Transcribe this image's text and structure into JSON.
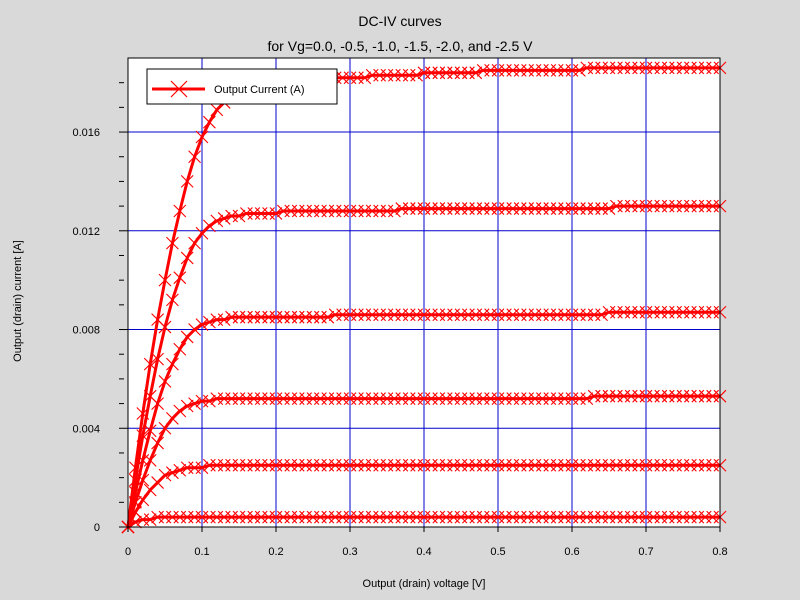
{
  "chart_data": {
    "type": "line",
    "title": "DC-IV curves",
    "subtitle": "for Vg=0.0, -0.5, -1.0, -1.5, -2.0, and -2.5 V",
    "xlabel": "Output (drain) voltage [V]",
    "ylabel": "Output (drain) current [A]",
    "xlim": [
      0,
      0.8
    ],
    "ylim": [
      0,
      0.019
    ],
    "x_ticks": [
      "0",
      "0.1",
      "0.2",
      "0.3",
      "0.4",
      "0.5",
      "0.6",
      "0.7",
      "0.8"
    ],
    "y_ticks": [
      "0",
      "0.004",
      "0.008",
      "0.012",
      "0.016"
    ],
    "grid": true,
    "legend_position": "top-left",
    "legend": [
      "Output Current (A)"
    ],
    "series_color": "#ff0000",
    "grid_color": "#0000cc",
    "marker": "x",
    "x": [
      0,
      0.01,
      0.02,
      0.03,
      0.04,
      0.05,
      0.06,
      0.07,
      0.08,
      0.09,
      0.1,
      0.11,
      0.12,
      0.13,
      0.14,
      0.15,
      0.16,
      0.17,
      0.18,
      0.19,
      0.2,
      0.21,
      0.22,
      0.23,
      0.24,
      0.25,
      0.26,
      0.27,
      0.28,
      0.29,
      0.3,
      0.31,
      0.32,
      0.33,
      0.34,
      0.35,
      0.36,
      0.37,
      0.38,
      0.39,
      0.4,
      0.41,
      0.42,
      0.43,
      0.44,
      0.45,
      0.46,
      0.47,
      0.48,
      0.49,
      0.5,
      0.51,
      0.52,
      0.53,
      0.54,
      0.55,
      0.56,
      0.57,
      0.58,
      0.59,
      0.6,
      0.61,
      0.62,
      0.63,
      0.64,
      0.65,
      0.66,
      0.67,
      0.68,
      0.69,
      0.7,
      0.71,
      0.72,
      0.73,
      0.74,
      0.75,
      0.76,
      0.77,
      0.78,
      0.79,
      0.8
    ],
    "series": [
      {
        "values": [
          0,
          0.0024,
          0.0046,
          0.0066,
          0.0084,
          0.01,
          0.0115,
          0.0128,
          0.014,
          0.015,
          0.0158,
          0.0164,
          0.0169,
          0.0172,
          0.0174,
          0.0176,
          0.0177,
          0.0178,
          0.0179,
          0.0179,
          0.018,
          0.018,
          0.018,
          0.0181,
          0.0181,
          0.0181,
          0.0181,
          0.0182,
          0.0182,
          0.0182,
          0.0182,
          0.0182,
          0.0182,
          0.0183,
          0.0183,
          0.0183,
          0.0183,
          0.0183,
          0.0183,
          0.0183,
          0.0184,
          0.0184,
          0.0184,
          0.0184,
          0.0184,
          0.0184,
          0.0184,
          0.0184,
          0.0185,
          0.0185,
          0.0185,
          0.0185,
          0.0185,
          0.0185,
          0.0185,
          0.0185,
          0.0185,
          0.0185,
          0.0185,
          0.0185,
          0.0185,
          0.0185,
          0.0186,
          0.0186,
          0.0186,
          0.0186,
          0.0186,
          0.0186,
          0.0186,
          0.0186,
          0.0186,
          0.0186,
          0.0186,
          0.0186,
          0.0186,
          0.0186,
          0.0186,
          0.0186,
          0.0186,
          0.0186,
          0.0186
        ]
      },
      {
        "values": [
          0,
          0.0019,
          0.0037,
          0.0053,
          0.0068,
          0.0081,
          0.0092,
          0.0101,
          0.0109,
          0.0115,
          0.0119,
          0.0122,
          0.0124,
          0.0125,
          0.0126,
          0.0126,
          0.0127,
          0.0127,
          0.0127,
          0.0127,
          0.0127,
          0.0128,
          0.0128,
          0.0128,
          0.0128,
          0.0128,
          0.0128,
          0.0128,
          0.0128,
          0.0128,
          0.0128,
          0.0128,
          0.0128,
          0.0128,
          0.0128,
          0.0128,
          0.0128,
          0.0129,
          0.0129,
          0.0129,
          0.0129,
          0.0129,
          0.0129,
          0.0129,
          0.0129,
          0.0129,
          0.0129,
          0.0129,
          0.0129,
          0.0129,
          0.0129,
          0.0129,
          0.0129,
          0.0129,
          0.0129,
          0.0129,
          0.0129,
          0.0129,
          0.0129,
          0.0129,
          0.0129,
          0.0129,
          0.0129,
          0.0129,
          0.0129,
          0.0129,
          0.013,
          0.013,
          0.013,
          0.013,
          0.013,
          0.013,
          0.013,
          0.013,
          0.013,
          0.013,
          0.013,
          0.013,
          0.013,
          0.013,
          0.013
        ]
      },
      {
        "values": [
          0,
          0.0014,
          0.0027,
          0.0039,
          0.005,
          0.0059,
          0.0066,
          0.0072,
          0.0077,
          0.008,
          0.0082,
          0.0083,
          0.0084,
          0.0084,
          0.0085,
          0.0085,
          0.0085,
          0.0085,
          0.0085,
          0.0085,
          0.0085,
          0.0085,
          0.0085,
          0.0085,
          0.0085,
          0.0085,
          0.0085,
          0.0085,
          0.0086,
          0.0086,
          0.0086,
          0.0086,
          0.0086,
          0.0086,
          0.0086,
          0.0086,
          0.0086,
          0.0086,
          0.0086,
          0.0086,
          0.0086,
          0.0086,
          0.0086,
          0.0086,
          0.0086,
          0.0086,
          0.0086,
          0.0086,
          0.0086,
          0.0086,
          0.0086,
          0.0086,
          0.0086,
          0.0086,
          0.0086,
          0.0086,
          0.0086,
          0.0086,
          0.0086,
          0.0086,
          0.0086,
          0.0086,
          0.0086,
          0.0086,
          0.0086,
          0.0087,
          0.0087,
          0.0087,
          0.0087,
          0.0087,
          0.0087,
          0.0087,
          0.0087,
          0.0087,
          0.0087,
          0.0087,
          0.0087,
          0.0087,
          0.0087,
          0.0087,
          0.0087
        ]
      },
      {
        "values": [
          0,
          0.001,
          0.0019,
          0.0027,
          0.0034,
          0.004,
          0.0044,
          0.0047,
          0.0049,
          0.005,
          0.0051,
          0.0051,
          0.0052,
          0.0052,
          0.0052,
          0.0052,
          0.0052,
          0.0052,
          0.0052,
          0.0052,
          0.0052,
          0.0052,
          0.0052,
          0.0052,
          0.0052,
          0.0052,
          0.0052,
          0.0052,
          0.0052,
          0.0052,
          0.0052,
          0.0052,
          0.0052,
          0.0052,
          0.0052,
          0.0052,
          0.0052,
          0.0052,
          0.0052,
          0.0052,
          0.0052,
          0.0052,
          0.0052,
          0.0052,
          0.0052,
          0.0052,
          0.0052,
          0.0052,
          0.0052,
          0.0052,
          0.0052,
          0.0052,
          0.0052,
          0.0052,
          0.0052,
          0.0052,
          0.0052,
          0.0052,
          0.0052,
          0.0052,
          0.0052,
          0.0052,
          0.0052,
          0.0053,
          0.0053,
          0.0053,
          0.0053,
          0.0053,
          0.0053,
          0.0053,
          0.0053,
          0.0053,
          0.0053,
          0.0053,
          0.0053,
          0.0053,
          0.0053,
          0.0053,
          0.0053,
          0.0053,
          0.0053
        ]
      },
      {
        "values": [
          0,
          0.0006,
          0.0011,
          0.0015,
          0.0018,
          0.0021,
          0.0022,
          0.0023,
          0.0024,
          0.0024,
          0.0024,
          0.0025,
          0.0025,
          0.0025,
          0.0025,
          0.0025,
          0.0025,
          0.0025,
          0.0025,
          0.0025,
          0.0025,
          0.0025,
          0.0025,
          0.0025,
          0.0025,
          0.0025,
          0.0025,
          0.0025,
          0.0025,
          0.0025,
          0.0025,
          0.0025,
          0.0025,
          0.0025,
          0.0025,
          0.0025,
          0.0025,
          0.0025,
          0.0025,
          0.0025,
          0.0025,
          0.0025,
          0.0025,
          0.0025,
          0.0025,
          0.0025,
          0.0025,
          0.0025,
          0.0025,
          0.0025,
          0.0025,
          0.0025,
          0.0025,
          0.0025,
          0.0025,
          0.0025,
          0.0025,
          0.0025,
          0.0025,
          0.0025,
          0.0025,
          0.0025,
          0.0025,
          0.0025,
          0.0025,
          0.0025,
          0.0025,
          0.0025,
          0.0025,
          0.0025,
          0.0025,
          0.0025,
          0.0025,
          0.0025,
          0.0025,
          0.0025,
          0.0025,
          0.0025,
          0.0025,
          0.0025,
          0.0025
        ]
      },
      {
        "values": [
          0,
          0.0002,
          0.0003,
          0.0003,
          0.0004,
          0.0004,
          0.0004,
          0.0004,
          0.0004,
          0.0004,
          0.0004,
          0.0004,
          0.0004,
          0.0004,
          0.0004,
          0.0004,
          0.0004,
          0.0004,
          0.0004,
          0.0004,
          0.0004,
          0.0004,
          0.0004,
          0.0004,
          0.0004,
          0.0004,
          0.0004,
          0.0004,
          0.0004,
          0.0004,
          0.0004,
          0.0004,
          0.0004,
          0.0004,
          0.0004,
          0.0004,
          0.0004,
          0.0004,
          0.0004,
          0.0004,
          0.0004,
          0.0004,
          0.0004,
          0.0004,
          0.0004,
          0.0004,
          0.0004,
          0.0004,
          0.0004,
          0.0004,
          0.0004,
          0.0004,
          0.0004,
          0.0004,
          0.0004,
          0.0004,
          0.0004,
          0.0004,
          0.0004,
          0.0004,
          0.0004,
          0.0004,
          0.0004,
          0.0004,
          0.0004,
          0.0004,
          0.0004,
          0.0004,
          0.0004,
          0.0004,
          0.0004,
          0.0004,
          0.0004,
          0.0004,
          0.0004,
          0.0004,
          0.0004,
          0.0004,
          0.0004,
          0.0004,
          0.0004
        ]
      }
    ]
  }
}
